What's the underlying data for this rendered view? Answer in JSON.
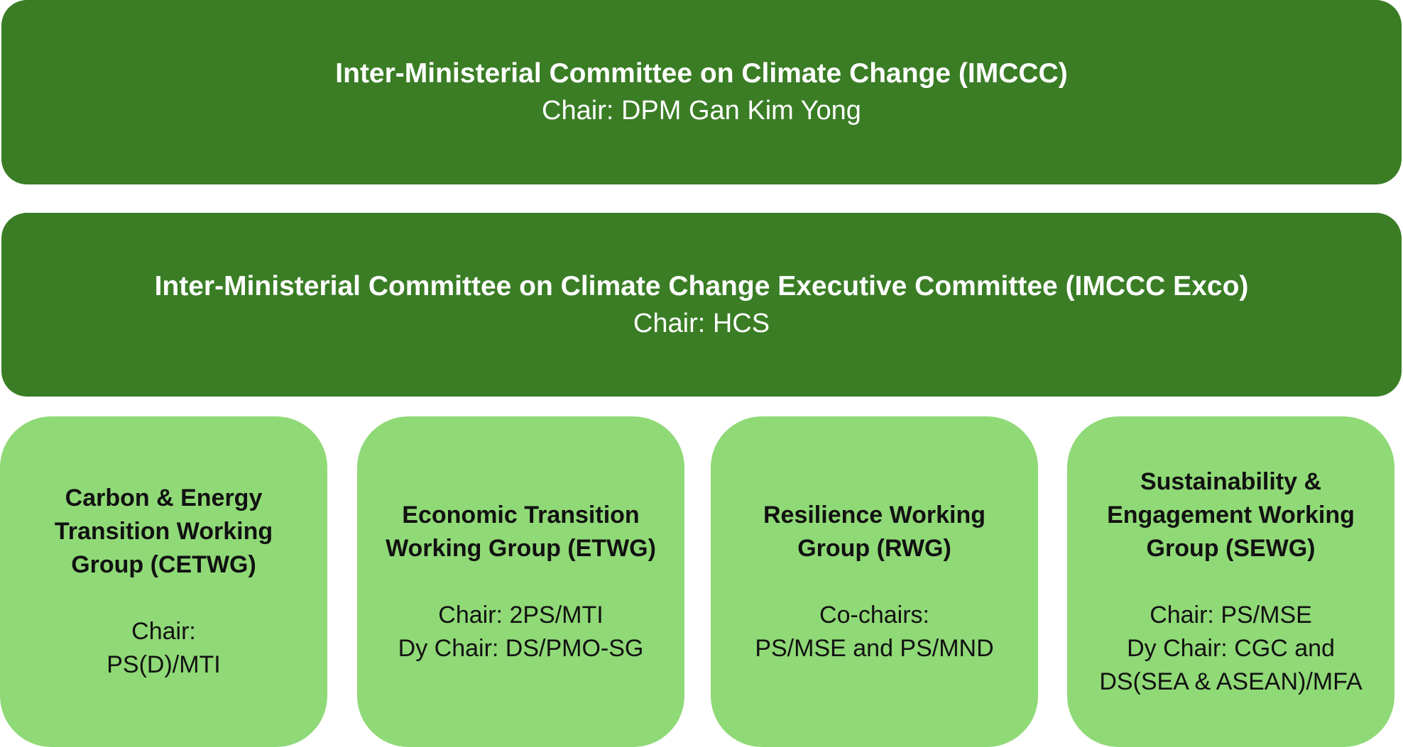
{
  "committee": {
    "title": "Inter-Ministerial Committee on Climate Change (IMCCC)",
    "chair": "Chair: DPM Gan Kim Yong"
  },
  "exco": {
    "title": "Inter-Ministerial Committee on Climate Change Executive Committee (IMCCC Exco)",
    "chair": "Chair: HCS"
  },
  "working_groups": [
    {
      "title_lines": [
        "Carbon & Energy",
        "Transition Working",
        "Group (CETWG)"
      ],
      "chair_lines": [
        "Chair:",
        "PS(D)/MTI"
      ]
    },
    {
      "title_lines": [
        "Economic Transition",
        "Working Group (ETWG)"
      ],
      "chair_lines": [
        "Chair: 2PS/MTI",
        "Dy Chair: DS/PMO-SG"
      ]
    },
    {
      "title_lines": [
        "Resilience Working",
        "Group (RWG)"
      ],
      "chair_lines": [
        "Co-chairs:",
        "PS/MSE and PS/MND"
      ]
    },
    {
      "title_lines": [
        "Sustainability &",
        "Engagement Working",
        "Group (SEWG)"
      ],
      "chair_lines": [
        "Chair: PS/MSE",
        "Dy Chair: CGC and",
        "DS(SEA & ASEAN)/MFA"
      ]
    }
  ],
  "colors": {
    "top_box_fill": "#3a7d25",
    "working_group_fill": "#90d977",
    "top_text": "#ffffff",
    "working_group_text": "#111111"
  }
}
